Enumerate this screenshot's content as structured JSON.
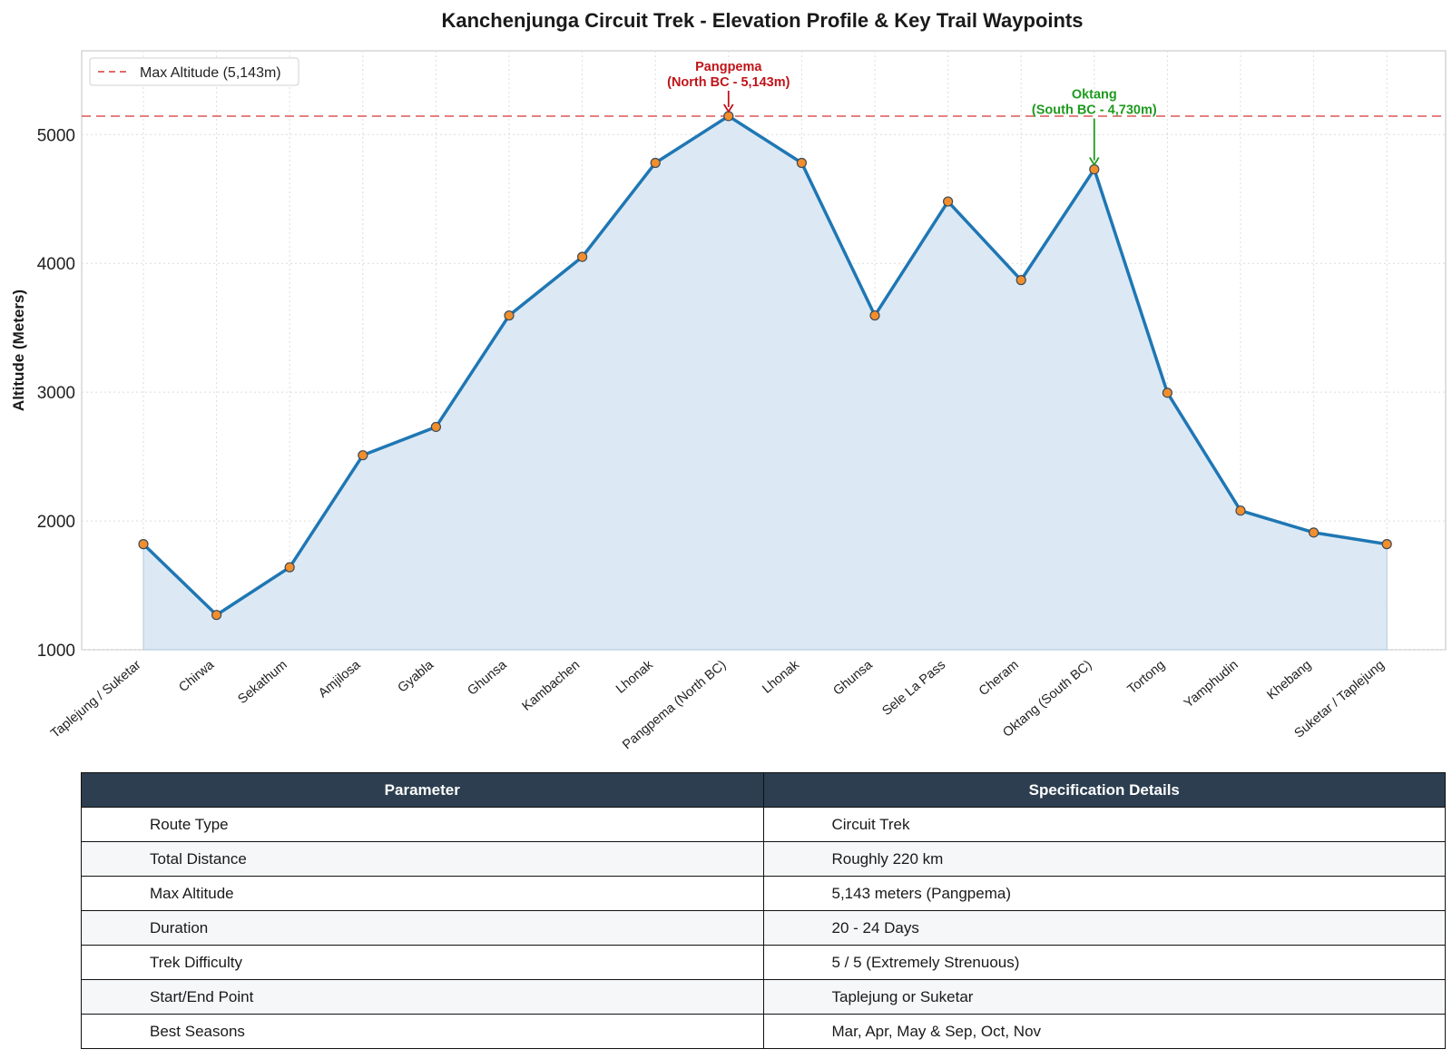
{
  "chart_data": {
    "type": "area",
    "title": "Kanchenjunga Circuit Trek - Elevation Profile & Key Trail Waypoints",
    "ylabel": "Altitude (Meters)",
    "xlabel": "",
    "ylim": [
      1000,
      5650
    ],
    "yticks": [
      1000,
      2000,
      3000,
      4000,
      5000
    ],
    "grid": true,
    "categories": [
      "Taplejung / Suketar",
      "Chirwa",
      "Sekathum",
      "Amjilosa",
      "Gyabla",
      "Ghunsa",
      "Kambachen",
      "Lhonak",
      "Pangpema (North BC)",
      "Lhonak",
      "Ghunsa",
      "Sele La Pass",
      "Cheram",
      "Oktang (South BC)",
      "Tortong",
      "Yamphudin",
      "Khebang",
      "Suketar / Taplejung"
    ],
    "values": [
      1820,
      1270,
      1640,
      2510,
      2730,
      3595,
      4050,
      4780,
      5143,
      4780,
      3595,
      4480,
      3870,
      4730,
      2995,
      2080,
      1910,
      1820
    ],
    "reference_line": {
      "label": "Max Altitude (5,143m)",
      "value": 5143,
      "color": "#e06c6c"
    },
    "legend_placement": "upper-left",
    "line_color": "#1f77b4",
    "marker_color": "#f28e2b",
    "fill_color": "#dce9f4",
    "annotations": [
      {
        "index": 8,
        "line1": "Pangpema",
        "line2": "(North BC - 5,143m)",
        "color": "#c0141a"
      },
      {
        "index": 13,
        "line1": "Oktang",
        "line2": "(South BC - 4,730m)",
        "color": "#1e9b1e"
      }
    ]
  },
  "table": {
    "headers": [
      "Parameter",
      "Specification Details"
    ],
    "header_bg": "#2c3e50",
    "rows": [
      [
        "Route Type",
        "Circuit Trek"
      ],
      [
        "Total Distance",
        "Roughly 220 km"
      ],
      [
        "Max Altitude",
        "5,143 meters (Pangpema)"
      ],
      [
        "Duration",
        "20 - 24 Days"
      ],
      [
        "Trek Difficulty",
        "5 / 5 (Extremely Strenuous)"
      ],
      [
        "Start/End Point",
        "Taplejung or Suketar"
      ],
      [
        "Best Seasons",
        "Mar, Apr, May & Sep, Oct, Nov"
      ]
    ]
  }
}
